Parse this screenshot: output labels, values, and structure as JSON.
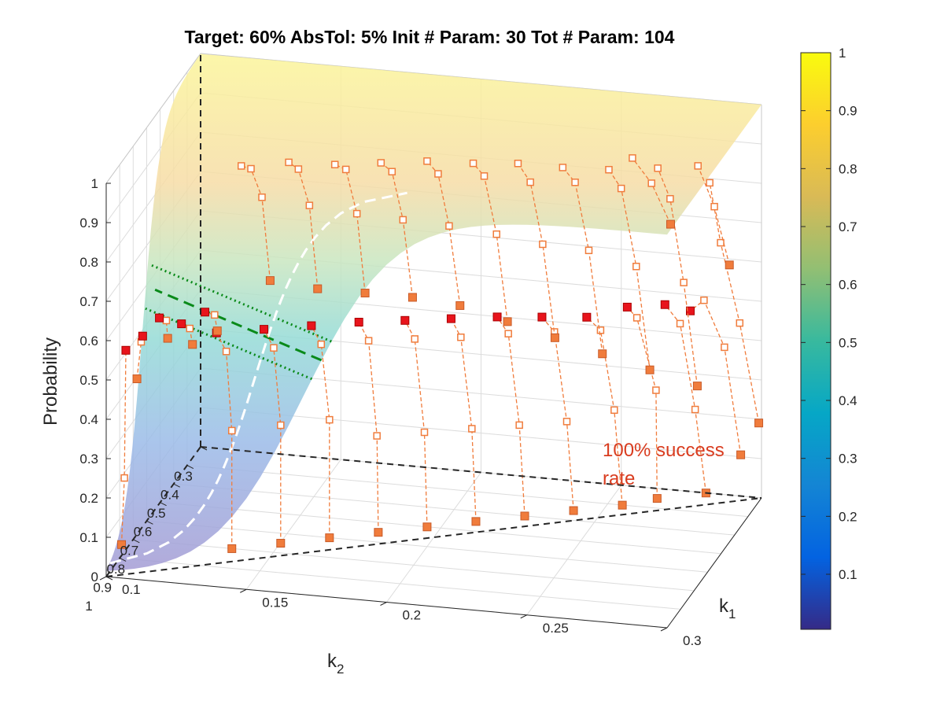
{
  "chart_data": {
    "type": "scatter",
    "subtype": "3d-surface-with-trajectories",
    "title": "Target: 60%  AbsTol: 5%  Init # Param: 30  Tot # Param: 104",
    "xlabel": "k",
    "xlabel_sub": "1",
    "ylabel": "k",
    "ylabel_sub": "2",
    "zlabel": "Probability",
    "xlim": [
      0.1,
      0.3
    ],
    "ylim": [
      0.3,
      1
    ],
    "zlim": [
      0,
      1
    ],
    "x_ticks": [
      "0.1",
      "0.15",
      "0.2",
      "0.25",
      "0.3"
    ],
    "y_ticks": [
      "1",
      "0.9",
      "0.8",
      "0.7",
      "0.6",
      "0.5",
      "0.4",
      "0.3"
    ],
    "z_ticks": [
      "0",
      "0.1",
      "0.2",
      "0.3",
      "0.4",
      "0.5",
      "0.6",
      "0.7",
      "0.8",
      "0.9",
      "1"
    ],
    "grid": true,
    "colorbar": {
      "ticks": [
        "0.1",
        "0.2",
        "0.3",
        "0.4",
        "0.5",
        "0.6",
        "0.7",
        "0.8",
        "0.9",
        "1"
      ],
      "colormap": "parula",
      "stops": [
        "#352a87",
        "#0363e1",
        "#1485d4",
        "#06a7c6",
        "#38b99e",
        "#92bf73",
        "#d9ba56",
        "#fcce2e",
        "#f9fb0e"
      ]
    },
    "annotation": "100% success rate",
    "target": 0.6,
    "abs_tol": 0.05,
    "colors": {
      "trajectory": "#f07c3c",
      "converged_marker": "#e8141c",
      "target_line": "#0a8a1a",
      "surface_low": "#a9a0d6",
      "surface_high": "#fbf59a"
    },
    "trajectories": [
      [
        [
          0.295,
          0.35,
          0.13
        ],
        [
          0.294,
          0.45,
          0.45
        ],
        [
          0.292,
          0.56,
          0.62
        ],
        [
          0.29,
          0.62,
          0.62
        ]
      ],
      [
        [
          0.285,
          0.4,
          0.05
        ],
        [
          0.285,
          0.48,
          0.3
        ],
        [
          0.283,
          0.55,
          0.55
        ],
        [
          0.28,
          0.6,
          0.62
        ]
      ],
      [
        [
          0.27,
          0.45,
          0.05
        ],
        [
          0.272,
          0.5,
          0.35
        ],
        [
          0.27,
          0.6,
          0.58
        ],
        [
          0.268,
          0.63,
          0.62
        ]
      ],
      [
        [
          0.26,
          0.5,
          0.05
        ],
        [
          0.26,
          0.56,
          0.32
        ],
        [
          0.258,
          0.62,
          0.55
        ],
        [
          0.255,
          0.66,
          0.6
        ]
      ],
      [
        [
          0.245,
          0.55,
          0.05
        ],
        [
          0.245,
          0.6,
          0.3
        ],
        [
          0.243,
          0.65,
          0.55
        ],
        [
          0.24,
          0.68,
          0.6
        ]
      ],
      [
        [
          0.23,
          0.6,
          0.05
        ],
        [
          0.23,
          0.64,
          0.3
        ],
        [
          0.228,
          0.68,
          0.55
        ],
        [
          0.225,
          0.7,
          0.6
        ]
      ],
      [
        [
          0.215,
          0.65,
          0.05
        ],
        [
          0.215,
          0.68,
          0.3
        ],
        [
          0.213,
          0.72,
          0.55
        ],
        [
          0.21,
          0.73,
          0.6
        ]
      ],
      [
        [
          0.2,
          0.7,
          0.05
        ],
        [
          0.2,
          0.72,
          0.3
        ],
        [
          0.198,
          0.75,
          0.55
        ],
        [
          0.195,
          0.76,
          0.6
        ]
      ],
      [
        [
          0.185,
          0.75,
          0.05
        ],
        [
          0.185,
          0.76,
          0.3
        ],
        [
          0.183,
          0.78,
          0.55
        ],
        [
          0.18,
          0.79,
          0.6
        ]
      ],
      [
        [
          0.17,
          0.8,
          0.05
        ],
        [
          0.17,
          0.8,
          0.35
        ],
        [
          0.168,
          0.82,
          0.55
        ],
        [
          0.165,
          0.83,
          0.6
        ]
      ],
      [
        [
          0.155,
          0.85,
          0.05
        ],
        [
          0.155,
          0.85,
          0.35
        ],
        [
          0.153,
          0.86,
          0.55
        ],
        [
          0.15,
          0.87,
          0.6
        ]
      ],
      [
        [
          0.14,
          0.9,
          0.05
        ],
        [
          0.14,
          0.9,
          0.35
        ],
        [
          0.138,
          0.9,
          0.55
        ],
        [
          0.135,
          0.91,
          0.6
        ]
      ],
      [
        [
          0.3,
          0.32,
          0.2
        ],
        [
          0.298,
          0.42,
          0.5
        ],
        [
          0.296,
          0.52,
          0.75
        ],
        [
          0.295,
          0.58,
          0.93
        ]
      ],
      [
        [
          0.28,
          0.36,
          0.3
        ],
        [
          0.279,
          0.44,
          0.6
        ],
        [
          0.278,
          0.52,
          0.85
        ],
        [
          0.276,
          0.57,
          0.95
        ]
      ],
      [
        [
          0.265,
          0.4,
          0.35
        ],
        [
          0.264,
          0.48,
          0.65
        ],
        [
          0.262,
          0.55,
          0.88
        ],
        [
          0.26,
          0.6,
          0.95
        ]
      ],
      [
        [
          0.25,
          0.44,
          0.4
        ],
        [
          0.249,
          0.52,
          0.7
        ],
        [
          0.247,
          0.58,
          0.9
        ],
        [
          0.245,
          0.63,
          0.96
        ]
      ],
      [
        [
          0.235,
          0.48,
          0.45
        ],
        [
          0.234,
          0.55,
          0.72
        ],
        [
          0.232,
          0.6,
          0.9
        ],
        [
          0.23,
          0.65,
          0.97
        ]
      ],
      [
        [
          0.22,
          0.52,
          0.5
        ],
        [
          0.219,
          0.58,
          0.75
        ],
        [
          0.217,
          0.63,
          0.92
        ],
        [
          0.215,
          0.67,
          0.97
        ]
      ],
      [
        [
          0.205,
          0.56,
          0.55
        ],
        [
          0.204,
          0.62,
          0.78
        ],
        [
          0.202,
          0.66,
          0.93
        ],
        [
          0.2,
          0.7,
          0.98
        ]
      ],
      [
        [
          0.19,
          0.6,
          0.58
        ],
        [
          0.189,
          0.65,
          0.8
        ],
        [
          0.187,
          0.69,
          0.94
        ],
        [
          0.185,
          0.73,
          0.98
        ]
      ],
      [
        [
          0.175,
          0.64,
          0.6
        ],
        [
          0.174,
          0.68,
          0.82
        ],
        [
          0.172,
          0.72,
          0.95
        ],
        [
          0.17,
          0.76,
          0.98
        ]
      ],
      [
        [
          0.16,
          0.68,
          0.62
        ],
        [
          0.159,
          0.72,
          0.85
        ],
        [
          0.157,
          0.76,
          0.96
        ],
        [
          0.155,
          0.79,
          0.99
        ]
      ],
      [
        [
          0.145,
          0.72,
          0.65
        ],
        [
          0.144,
          0.76,
          0.88
        ],
        [
          0.142,
          0.8,
          0.97
        ],
        [
          0.14,
          0.83,
          0.99
        ]
      ],
      [
        [
          0.13,
          0.8,
          0.55
        ],
        [
          0.13,
          0.82,
          0.6
        ],
        [
          0.128,
          0.85,
          0.62
        ]
      ],
      [
        [
          0.125,
          0.88,
          0.55
        ],
        [
          0.125,
          0.9,
          0.6
        ],
        [
          0.123,
          0.92,
          0.62
        ]
      ],
      [
        [
          0.12,
          0.96,
          0.6
        ],
        [
          0.12,
          0.97,
          0.65
        ],
        [
          0.118,
          0.98,
          0.66
        ]
      ],
      [
        [
          0.27,
          0.35,
          0.7
        ],
        [
          0.268,
          0.45,
          0.85
        ],
        [
          0.266,
          0.55,
          0.96
        ]
      ],
      [
        [
          0.29,
          0.33,
          0.6
        ],
        [
          0.288,
          0.4,
          0.78
        ],
        [
          0.286,
          0.48,
          0.92
        ]
      ],
      [
        [
          0.11,
          0.98,
          0.5
        ],
        [
          0.112,
          0.99,
          0.6
        ],
        [
          0.113,
          1.0,
          0.62
        ]
      ],
      [
        [
          0.105,
          0.99,
          0.08
        ],
        [
          0.106,
          0.99,
          0.25
        ],
        [
          0.107,
          1.0,
          0.58
        ]
      ]
    ]
  }
}
